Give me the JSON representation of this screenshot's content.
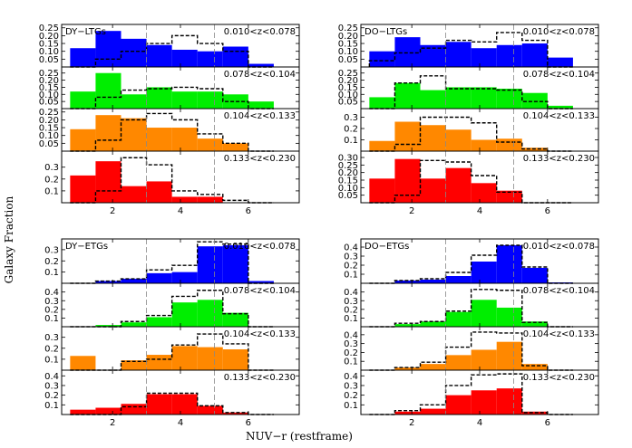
{
  "figure": {
    "ylabel": "Galaxy Fraction",
    "xlabel": "NUV−r (restframe)"
  },
  "colors": {
    "z1": "#0000ff",
    "z2": "#00ee00",
    "z3": "#ff8800",
    "z4": "#ff0000",
    "outline": "#000000",
    "vline": "#888888"
  },
  "chart_data": [
    {
      "type": "bar",
      "group_label": "DY−LTGs",
      "panels": [
        {
          "zlabel": "0.010<z<0.078",
          "color": "z1",
          "ylim": [
            0,
            0.26
          ],
          "yticks": [
            "0.05",
            "0.10",
            "0.15",
            "0.20",
            "0.25"
          ],
          "filled": [
            0.12,
            0.23,
            0.18,
            0.14,
            0.11,
            0.1,
            0.13,
            0.02
          ],
          "dashed": [
            0,
            0.05,
            0.1,
            0.15,
            0.2,
            0.15,
            0.1,
            0
          ]
        },
        {
          "zlabel": "0.078<z<0.104",
          "color": "z2",
          "ylim": [
            0,
            0.28
          ],
          "yticks": [
            "0.05",
            "0.10",
            "0.15",
            "0.20",
            "0.25"
          ],
          "filled": [
            0.12,
            0.25,
            0.1,
            0.15,
            0.12,
            0.12,
            0.1,
            0.05
          ],
          "dashed": [
            0,
            0.08,
            0.13,
            0.14,
            0.15,
            0.14,
            0.05,
            0
          ]
        },
        {
          "zlabel": "0.104<z<0.133",
          "color": "z3",
          "ylim": [
            0,
            0.26
          ],
          "yticks": [
            "0.05",
            "0.10",
            "0.15",
            "0.20",
            "0.25"
          ],
          "filled": [
            0.14,
            0.23,
            0.21,
            0.15,
            0.15,
            0.08,
            0.05,
            0
          ],
          "dashed": [
            0,
            0.07,
            0.2,
            0.24,
            0.2,
            0.11,
            0.05,
            0
          ]
        },
        {
          "zlabel": "0.133<z<0.230",
          "color": "z4",
          "ylim": [
            0,
            0.42
          ],
          "yticks": [
            "0.1",
            "0.2",
            "0.3"
          ],
          "filled": [
            0.23,
            0.35,
            0.14,
            0.18,
            0.05,
            0.05,
            0,
            0
          ],
          "dashed": [
            0,
            0.1,
            0.38,
            0.32,
            0.1,
            0.07,
            0.02,
            0
          ]
        }
      ]
    },
    {
      "type": "bar",
      "group_label": "DO−LTGs",
      "panels": [
        {
          "zlabel": "0.010<z<0.078",
          "color": "z1",
          "ylim": [
            0,
            0.26
          ],
          "yticks": [
            "0.05",
            "0.10",
            "0.15",
            "0.20",
            "0.25"
          ],
          "filled": [
            0.1,
            0.19,
            0.14,
            0.16,
            0.12,
            0.14,
            0.15,
            0.06
          ],
          "dashed": [
            0.04,
            0.09,
            0.12,
            0.17,
            0.16,
            0.22,
            0.17,
            0
          ]
        },
        {
          "zlabel": "0.078<z<0.104",
          "color": "z2",
          "ylim": [
            0,
            0.28
          ],
          "yticks": [
            "0.05",
            "0.10",
            "0.15",
            "0.20",
            "0.25"
          ],
          "filled": [
            0.08,
            0.18,
            0.13,
            0.15,
            0.15,
            0.14,
            0.11,
            0.02
          ],
          "dashed": [
            0,
            0.18,
            0.23,
            0.14,
            0.14,
            0.13,
            0.05,
            0
          ]
        },
        {
          "zlabel": "0.104<z<0.133",
          "color": "z3",
          "ylim": [
            0,
            0.36
          ],
          "yticks": [
            "0.1",
            "0.2",
            "0.3"
          ],
          "filled": [
            0.09,
            0.26,
            0.23,
            0.19,
            0.1,
            0.11,
            0.03,
            0
          ],
          "dashed": [
            0,
            0.06,
            0.3,
            0.3,
            0.25,
            0.08,
            0.02,
            0
          ]
        },
        {
          "zlabel": "0.133<z<0.230",
          "color": "z4",
          "ylim": [
            0,
            0.33
          ],
          "yticks": [
            "0.05",
            "0.10",
            "0.15",
            "0.20",
            "0.25",
            "0.30"
          ],
          "filled": [
            0.16,
            0.29,
            0.16,
            0.23,
            0.13,
            0.08,
            0,
            0
          ],
          "dashed": [
            0,
            0.05,
            0.28,
            0.27,
            0.18,
            0.07,
            0,
            0
          ]
        }
      ]
    },
    {
      "type": "bar",
      "group_label": "DY−ETGs",
      "panels": [
        {
          "zlabel": "0.010<z<0.078",
          "color": "z1",
          "ylim": [
            0,
            0.38
          ],
          "yticks": [
            "0.1",
            "0.2",
            "0.3"
          ],
          "filled": [
            0,
            0.02,
            0.04,
            0.09,
            0.1,
            0.33,
            0.34,
            0.02
          ],
          "dashed": [
            0,
            0.02,
            0.04,
            0.12,
            0.16,
            0.37,
            0.35,
            0
          ]
        },
        {
          "zlabel": "0.078<z<0.104",
          "color": "z2",
          "ylim": [
            0,
            0.48
          ],
          "yticks": [
            "0.1",
            "0.2",
            "0.3",
            "0.4"
          ],
          "filled": [
            0,
            0.02,
            0.05,
            0.11,
            0.28,
            0.31,
            0.16,
            0
          ],
          "dashed": [
            0,
            0,
            0.06,
            0.13,
            0.35,
            0.42,
            0.15,
            0
          ]
        },
        {
          "zlabel": "0.104<z<0.133",
          "color": "z3",
          "ylim": [
            0,
            0.38
          ],
          "yticks": [
            "0.1",
            "0.2",
            "0.3"
          ],
          "filled": [
            0.13,
            0,
            0.09,
            0.14,
            0.22,
            0.21,
            0.19,
            0
          ],
          "dashed": [
            0,
            0,
            0.08,
            0.1,
            0.23,
            0.33,
            0.24,
            0
          ]
        },
        {
          "zlabel": "0.133<z<0.230",
          "color": "z4",
          "ylim": [
            0,
            0.44
          ],
          "yticks": [
            "0.1",
            "0.2",
            "0.3",
            "0.4"
          ],
          "filled": [
            0.05,
            0.07,
            0.11,
            0.21,
            0.21,
            0.09,
            0.02,
            0
          ],
          "dashed": [
            0,
            0,
            0.08,
            0.22,
            0.22,
            0.09,
            0.02,
            0
          ]
        }
      ]
    },
    {
      "type": "bar",
      "group_label": "DO−ETGs",
      "panels": [
        {
          "zlabel": "0.010<z<0.078",
          "color": "z1",
          "ylim": [
            0,
            0.47
          ],
          "yticks": [
            "0.1",
            "0.2",
            "0.3",
            "0.4"
          ],
          "filled": [
            0,
            0.03,
            0.04,
            0.08,
            0.24,
            0.42,
            0.17,
            0.01
          ],
          "dashed": [
            0,
            0.03,
            0.05,
            0.12,
            0.31,
            0.42,
            0.18,
            0
          ]
        },
        {
          "zlabel": "0.078<z<0.104",
          "color": "z2",
          "ylim": [
            0,
            0.48
          ],
          "yticks": [
            "0.1",
            "0.2",
            "0.3",
            "0.4"
          ],
          "filled": [
            0,
            0.03,
            0.06,
            0.17,
            0.31,
            0.22,
            0.06,
            0
          ],
          "dashed": [
            0,
            0.04,
            0.06,
            0.18,
            0.43,
            0.42,
            0.05,
            0
          ]
        },
        {
          "zlabel": "0.104<z<0.133",
          "color": "z3",
          "ylim": [
            0,
            0.47
          ],
          "yticks": [
            "0.1",
            "0.2",
            "0.3",
            "0.4"
          ],
          "filled": [
            0,
            0.03,
            0.07,
            0.17,
            0.23,
            0.32,
            0.07,
            0
          ],
          "dashed": [
            0,
            0.03,
            0.09,
            0.26,
            0.43,
            0.42,
            0.05,
            0
          ]
        },
        {
          "zlabel": "0.133<z<0.230",
          "color": "z4",
          "ylim": [
            0,
            0.44
          ],
          "yticks": [
            "0.1",
            "0.2",
            "0.3",
            "0.4"
          ],
          "filled": [
            0,
            0.03,
            0.06,
            0.2,
            0.25,
            0.27,
            0.03,
            0
          ],
          "dashed": [
            0,
            0.04,
            0.1,
            0.3,
            0.41,
            0.42,
            0.02,
            0
          ]
        }
      ]
    }
  ],
  "shared_x": {
    "bins": [
      1,
      1.5,
      2,
      2.5,
      3,
      3.5,
      4,
      4.5,
      5
    ],
    "bin_edges_note": "",
    "xlim": [
      0.5,
      7.5
    ],
    "xticks": [
      "2",
      "4",
      "6"
    ],
    "vlines": [
      3,
      5
    ]
  }
}
